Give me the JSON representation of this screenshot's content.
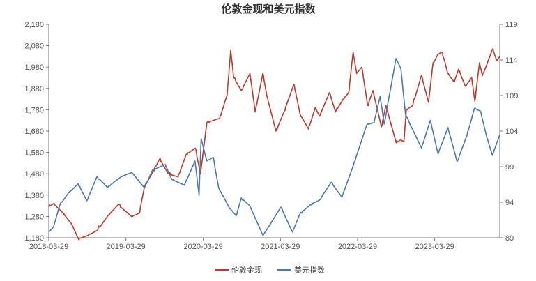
{
  "chart_data": {
    "type": "line",
    "title": "伦敦金现和美元指数",
    "x_ticks": [
      "2018-03-29",
      "2019-03-29",
      "2020-03-29",
      "2021-03-29",
      "2022-03-29",
      "2023-03-29"
    ],
    "y_left": {
      "min": 1180,
      "max": 2180,
      "ticks": [
        1180,
        1280,
        1380,
        1480,
        1580,
        1680,
        1780,
        1880,
        1980,
        2080,
        2180
      ],
      "tick_labels": [
        "1,180",
        "1,280",
        "1,380",
        "1,480",
        "1,580",
        "1,680",
        "1,780",
        "1,880",
        "1,980",
        "2,080",
        "2,180"
      ]
    },
    "y_right": {
      "min": 89,
      "max": 119,
      "ticks": [
        89,
        94,
        99,
        104,
        109,
        114,
        119
      ],
      "tick_labels": [
        "89",
        "94",
        "99",
        "104",
        "109",
        "114",
        "119"
      ]
    },
    "x_range": [
      "2018-03-29",
      "2024-01-31"
    ],
    "grid": false,
    "legend_position": "bottom",
    "series": [
      {
        "name": "伦敦金现",
        "axis": "left",
        "color": "#c0392b",
        "points": [
          [
            "2018-03-29",
            1325
          ],
          [
            "2018-04-20",
            1340
          ],
          [
            "2018-06-01",
            1300
          ],
          [
            "2018-07-15",
            1245
          ],
          [
            "2018-08-16",
            1175
          ],
          [
            "2018-09-28",
            1190
          ],
          [
            "2018-11-15",
            1215
          ],
          [
            "2018-12-31",
            1280
          ],
          [
            "2019-02-20",
            1335
          ],
          [
            "2019-04-25",
            1280
          ],
          [
            "2019-05-31",
            1295
          ],
          [
            "2019-06-25",
            1420
          ],
          [
            "2019-08-10",
            1500
          ],
          [
            "2019-09-05",
            1550
          ],
          [
            "2019-10-15",
            1480
          ],
          [
            "2019-12-01",
            1465
          ],
          [
            "2020-01-08",
            1570
          ],
          [
            "2020-02-20",
            1600
          ],
          [
            "2020-03-16",
            1480
          ],
          [
            "2020-04-15",
            1720
          ],
          [
            "2020-06-15",
            1740
          ],
          [
            "2020-07-20",
            1850
          ],
          [
            "2020-08-06",
            2060
          ],
          [
            "2020-08-20",
            1930
          ],
          [
            "2020-09-25",
            1870
          ],
          [
            "2020-11-05",
            1950
          ],
          [
            "2020-11-30",
            1770
          ],
          [
            "2021-01-05",
            1950
          ],
          [
            "2021-01-25",
            1840
          ],
          [
            "2021-03-08",
            1680
          ],
          [
            "2021-04-15",
            1770
          ],
          [
            "2021-06-01",
            1900
          ],
          [
            "2021-06-30",
            1760
          ],
          [
            "2021-08-09",
            1690
          ],
          [
            "2021-09-10",
            1790
          ],
          [
            "2021-09-30",
            1750
          ],
          [
            "2021-11-16",
            1860
          ],
          [
            "2021-12-15",
            1770
          ],
          [
            "2022-01-20",
            1830
          ],
          [
            "2022-02-15",
            1860
          ],
          [
            "2022-03-08",
            2050
          ],
          [
            "2022-03-25",
            1950
          ],
          [
            "2022-04-18",
            1980
          ],
          [
            "2022-05-16",
            1800
          ],
          [
            "2022-06-10",
            1870
          ],
          [
            "2022-07-20",
            1700
          ],
          [
            "2022-08-10",
            1800
          ],
          [
            "2022-09-28",
            1625
          ],
          [
            "2022-10-20",
            1640
          ],
          [
            "2022-11-03",
            1630
          ],
          [
            "2022-11-15",
            1780
          ],
          [
            "2022-12-15",
            1800
          ],
          [
            "2023-01-25",
            1940
          ],
          [
            "2023-02-28",
            1815
          ],
          [
            "2023-03-20",
            1990
          ],
          [
            "2023-04-13",
            2040
          ],
          [
            "2023-05-04",
            2050
          ],
          [
            "2023-05-30",
            1950
          ],
          [
            "2023-06-29",
            1910
          ],
          [
            "2023-07-20",
            1970
          ],
          [
            "2023-08-21",
            1890
          ],
          [
            "2023-09-20",
            1930
          ],
          [
            "2023-10-05",
            1820
          ],
          [
            "2023-10-27",
            2000
          ],
          [
            "2023-11-10",
            1940
          ],
          [
            "2023-12-04",
            2000
          ],
          [
            "2023-12-28",
            2065
          ],
          [
            "2024-01-17",
            2010
          ],
          [
            "2024-01-31",
            2030
          ]
        ]
      },
      {
        "name": "美元指数",
        "axis": "right",
        "color": "#4a78b5",
        "points": [
          [
            "2018-03-29",
            89.8
          ],
          [
            "2018-04-20",
            90.5
          ],
          [
            "2018-05-20",
            93.6
          ],
          [
            "2018-06-28",
            95.2
          ],
          [
            "2018-08-15",
            96.6
          ],
          [
            "2018-09-25",
            94.2
          ],
          [
            "2018-11-12",
            97.6
          ],
          [
            "2018-12-31",
            96.1
          ],
          [
            "2019-03-07",
            97.6
          ],
          [
            "2019-04-26",
            98.2
          ],
          [
            "2019-06-25",
            96.0
          ],
          [
            "2019-08-01",
            98.5
          ],
          [
            "2019-10-01",
            99.3
          ],
          [
            "2019-11-01",
            97.2
          ],
          [
            "2019-12-31",
            96.4
          ],
          [
            "2020-02-19",
            99.8
          ],
          [
            "2020-03-09",
            95.0
          ],
          [
            "2020-03-19",
            102.9
          ],
          [
            "2020-04-15",
            99.8
          ],
          [
            "2020-05-15",
            100.3
          ],
          [
            "2020-06-10",
            96.0
          ],
          [
            "2020-07-31",
            93.2
          ],
          [
            "2020-09-01",
            92.1
          ],
          [
            "2020-09-25",
            94.6
          ],
          [
            "2020-11-04",
            93.5
          ],
          [
            "2021-01-06",
            89.3
          ],
          [
            "2021-03-31",
            93.3
          ],
          [
            "2021-05-25",
            89.8
          ],
          [
            "2021-06-30",
            92.4
          ],
          [
            "2021-08-20",
            93.7
          ],
          [
            "2021-09-30",
            94.3
          ],
          [
            "2021-11-24",
            96.8
          ],
          [
            "2022-01-14",
            94.7
          ],
          [
            "2022-03-07",
            99.0
          ],
          [
            "2022-05-12",
            104.9
          ],
          [
            "2022-06-15",
            105.2
          ],
          [
            "2022-07-14",
            108.9
          ],
          [
            "2022-08-02",
            105.0
          ],
          [
            "2022-09-27",
            114.2
          ],
          [
            "2022-10-20",
            112.8
          ],
          [
            "2022-11-11",
            106.3
          ],
          [
            "2023-01-26",
            101.6
          ],
          [
            "2023-03-08",
            105.5
          ],
          [
            "2023-04-14",
            100.8
          ],
          [
            "2023-05-31",
            104.5
          ],
          [
            "2023-07-13",
            99.7
          ],
          [
            "2023-08-30",
            103.5
          ],
          [
            "2023-10-03",
            107.2
          ],
          [
            "2023-11-01",
            106.8
          ],
          [
            "2023-11-30",
            103.2
          ],
          [
            "2023-12-27",
            100.6
          ],
          [
            "2024-01-31",
            103.5
          ]
        ]
      }
    ]
  }
}
